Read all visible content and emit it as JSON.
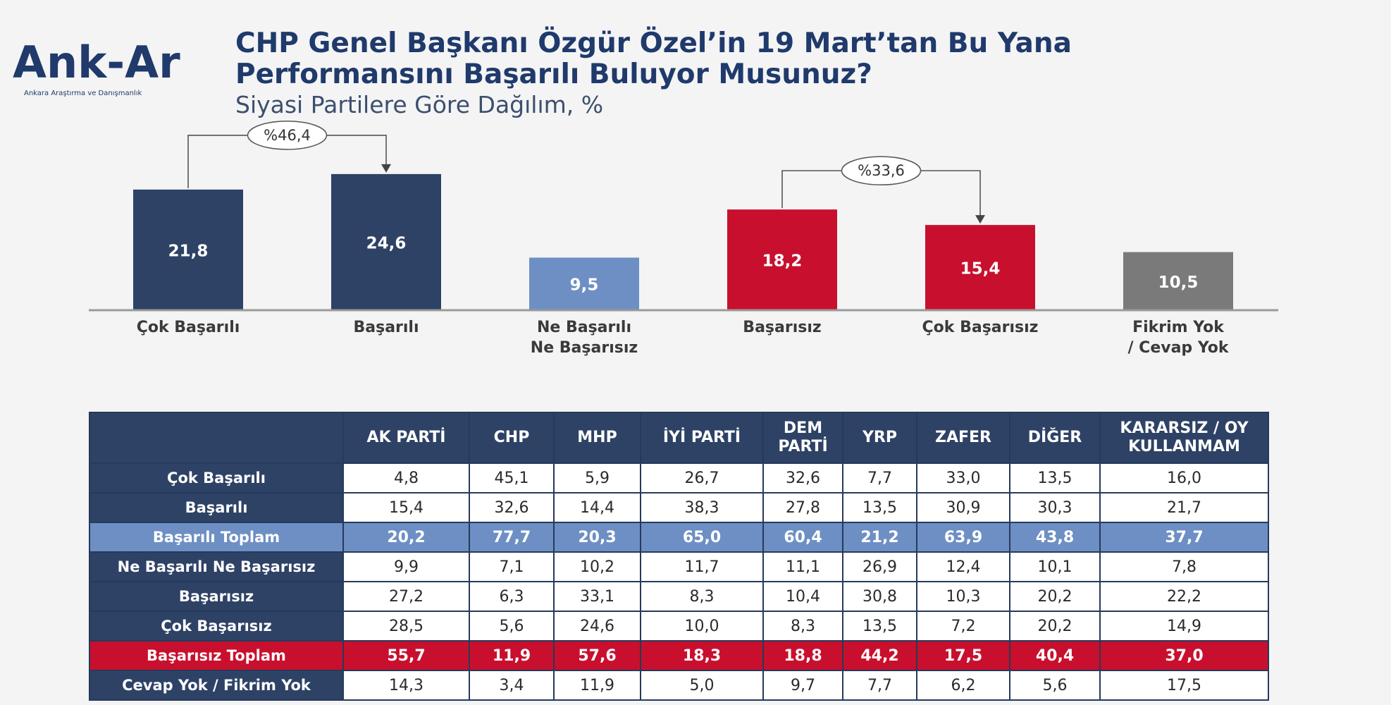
{
  "brand": {
    "logo_text": "Ank-Ar",
    "logo_tagline": "Ankara Araştırma ve Danışmanlık",
    "primary_color": "#1f3a6b"
  },
  "title_line1": "CHP Genel Başkanı Özgür Özel’in 19 Mart’tan Bu Yana",
  "title_line2": "Performansını Başarılı Buluyor Musunuz?",
  "subtitle": "Siyasi Partilere Göre Dağılım, %",
  "chart_data": {
    "type": "bar",
    "categories": [
      [
        "Çok Başarılı"
      ],
      [
        "Başarılı"
      ],
      [
        "Ne Başarılı",
        "Ne Başarısız"
      ],
      [
        "Başarısız"
      ],
      [
        "Çok Başarısız"
      ],
      [
        "Fikrim Yok",
        "/ Cevap Yok"
      ]
    ],
    "values": [
      21.8,
      24.6,
      9.5,
      18.2,
      15.4,
      10.5
    ],
    "value_labels": [
      "21,8",
      "24,6",
      "9,5",
      "18,2",
      "15,4",
      "10,5"
    ],
    "colors": [
      "#2e4266",
      "#2e4266",
      "#6d8fc4",
      "#c8102e",
      "#c8102e",
      "#7a7a7a"
    ],
    "annotations": [
      {
        "from": 0,
        "to": 1,
        "label": "%46,4"
      },
      {
        "from": 3,
        "to": 4,
        "label": "%33,6"
      }
    ],
    "grid": false,
    "ylim": [
      0,
      25
    ]
  },
  "table": {
    "columns": [
      "",
      "AK PARTİ",
      "CHP",
      "MHP",
      "İYİ PARTİ",
      "DEM PARTİ",
      "YRP",
      "ZAFER",
      "DİĞER",
      "KARARSIZ / OY KULLANMAM"
    ],
    "rows": [
      {
        "label": "Çok Başarılı",
        "style": "normal",
        "values": [
          "4,8",
          "45,1",
          "5,9",
          "26,7",
          "32,6",
          "7,7",
          "33,0",
          "13,5",
          "16,0"
        ]
      },
      {
        "label": "Başarılı",
        "style": "normal",
        "values": [
          "15,4",
          "32,6",
          "14,4",
          "38,3",
          "27,8",
          "13,5",
          "30,9",
          "30,3",
          "21,7"
        ]
      },
      {
        "label": "Başarılı Toplam",
        "style": "blue",
        "values": [
          "20,2",
          "77,7",
          "20,3",
          "65,0",
          "60,4",
          "21,2",
          "63,9",
          "43,8",
          "37,7"
        ]
      },
      {
        "label": "Ne Başarılı Ne Başarısız",
        "style": "normal",
        "values": [
          "9,9",
          "7,1",
          "10,2",
          "11,7",
          "11,1",
          "26,9",
          "12,4",
          "10,1",
          "7,8"
        ]
      },
      {
        "label": "Başarısız",
        "style": "normal",
        "values": [
          "27,2",
          "6,3",
          "33,1",
          "8,3",
          "10,4",
          "30,8",
          "10,3",
          "20,2",
          "22,2"
        ]
      },
      {
        "label": "Çok Başarısız",
        "style": "normal",
        "values": [
          "28,5",
          "5,6",
          "24,6",
          "10,0",
          "8,3",
          "13,5",
          "7,2",
          "20,2",
          "14,9"
        ]
      },
      {
        "label": "Başarısız Toplam",
        "style": "red",
        "values": [
          "55,7",
          "11,9",
          "57,6",
          "18,3",
          "18,8",
          "44,2",
          "17,5",
          "40,4",
          "37,0"
        ]
      },
      {
        "label": "Cevap Yok / Fikrim Yok",
        "style": "normal",
        "values": [
          "14,3",
          "3,4",
          "11,9",
          "5,0",
          "9,7",
          "7,7",
          "6,2",
          "5,6",
          "17,5"
        ]
      }
    ]
  }
}
